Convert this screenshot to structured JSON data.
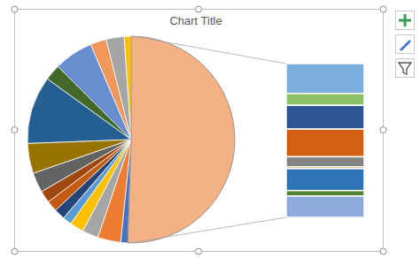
{
  "chart_data": {
    "type": "bar_of_pie",
    "title": "Chart Title",
    "color": "#f4b183",
    "series": [
      {
        "type": "pie",
        "values": [
          1.1,
          2.8,
          2.5,
          6.1,
          2.5,
          10.6,
          4.7,
          3.1,
          1.9,
          1.7,
          1.7,
          1.4,
          2.2,
          2.5,
          3.6,
          1.1
        ],
        "colors": [
          "#ffc000",
          "#a5a5a5",
          "#f1975a",
          "#698ed0",
          "#43682b",
          "#255e91",
          "#997300",
          "#636363",
          "#9e480e",
          "#c55a11",
          "#264478",
          "#5b9bd5",
          "#ffc000",
          "#a5a5a5",
          "#ed7d31",
          "#4472c4"
        ]
      },
      {
        "type": "bar",
        "values": [
          9.8,
          3.9,
          7.8,
          9.1,
          3.3,
          0.6,
          7.2,
          1.8,
          7.0
        ],
        "colors": [
          "#7cafdd",
          "#8cc168",
          "#2f5597",
          "#d26012",
          "#848484",
          "#cc9a00",
          "#2e75b6",
          "#548235",
          "#8faadc"
        ]
      }
    ]
  }
}
